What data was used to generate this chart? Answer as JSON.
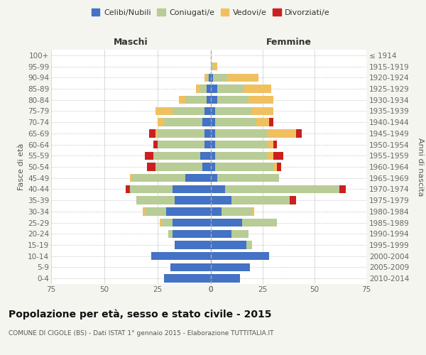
{
  "age_groups": [
    "0-4",
    "5-9",
    "10-14",
    "15-19",
    "20-24",
    "25-29",
    "30-34",
    "35-39",
    "40-44",
    "45-49",
    "50-54",
    "55-59",
    "60-64",
    "65-69",
    "70-74",
    "75-79",
    "80-84",
    "85-89",
    "90-94",
    "95-99",
    "100+"
  ],
  "birth_years": [
    "2010-2014",
    "2005-2009",
    "2000-2004",
    "1995-1999",
    "1990-1994",
    "1985-1989",
    "1980-1984",
    "1975-1979",
    "1970-1974",
    "1965-1969",
    "1960-1964",
    "1955-1959",
    "1950-1954",
    "1945-1949",
    "1940-1944",
    "1935-1939",
    "1930-1934",
    "1925-1929",
    "1920-1924",
    "1915-1919",
    "≤ 1914"
  ],
  "maschi_celibi": [
    22,
    19,
    28,
    17,
    18,
    18,
    21,
    17,
    18,
    12,
    4,
    5,
    3,
    3,
    4,
    3,
    2,
    2,
    1,
    0,
    0
  ],
  "maschi_coniugati": [
    0,
    0,
    0,
    0,
    2,
    5,
    10,
    18,
    20,
    25,
    22,
    22,
    22,
    22,
    18,
    15,
    10,
    3,
    1,
    0,
    0
  ],
  "maschi_vedovi": [
    0,
    0,
    0,
    0,
    0,
    1,
    1,
    0,
    0,
    1,
    0,
    0,
    0,
    1,
    3,
    8,
    3,
    2,
    1,
    0,
    0
  ],
  "maschi_divorziati": [
    0,
    0,
    0,
    0,
    0,
    0,
    0,
    0,
    2,
    0,
    4,
    4,
    2,
    3,
    0,
    0,
    0,
    0,
    0,
    0,
    0
  ],
  "femmine_celibi": [
    14,
    19,
    28,
    17,
    10,
    15,
    5,
    10,
    7,
    3,
    2,
    2,
    2,
    2,
    2,
    2,
    3,
    3,
    1,
    0,
    0
  ],
  "femmine_coniugati": [
    0,
    0,
    0,
    3,
    8,
    17,
    15,
    28,
    55,
    30,
    28,
    25,
    25,
    25,
    20,
    18,
    15,
    13,
    7,
    1,
    0
  ],
  "femmine_vedovi": [
    0,
    0,
    0,
    0,
    0,
    0,
    1,
    0,
    0,
    0,
    2,
    3,
    3,
    14,
    6,
    10,
    12,
    13,
    15,
    2,
    0
  ],
  "femmine_divorziati": [
    0,
    0,
    0,
    0,
    0,
    0,
    0,
    3,
    3,
    0,
    2,
    5,
    2,
    3,
    2,
    0,
    0,
    0,
    0,
    0,
    0
  ],
  "colors": {
    "celibi": "#4472c4",
    "coniugati": "#b8cc96",
    "vedovi": "#f0c060",
    "divorziati": "#cc2020"
  },
  "xlim": 75,
  "title": "Popolazione per età, sesso e stato civile - 2015",
  "subtitle": "COMUNE DI CIGOLE (BS) - Dati ISTAT 1° gennaio 2015 - Elaborazione TUTTITALIA.IT",
  "ylabel_left": "Fasce di età",
  "ylabel_right": "Anni di nascita",
  "xlabel_maschi": "Maschi",
  "xlabel_femmine": "Femmine",
  "legend_labels": [
    "Celibi/Nubili",
    "Coniugati/e",
    "Vedovi/e",
    "Divorziati/e"
  ],
  "bg_color": "#f5f5f0",
  "bar_bg_color": "#ffffff"
}
